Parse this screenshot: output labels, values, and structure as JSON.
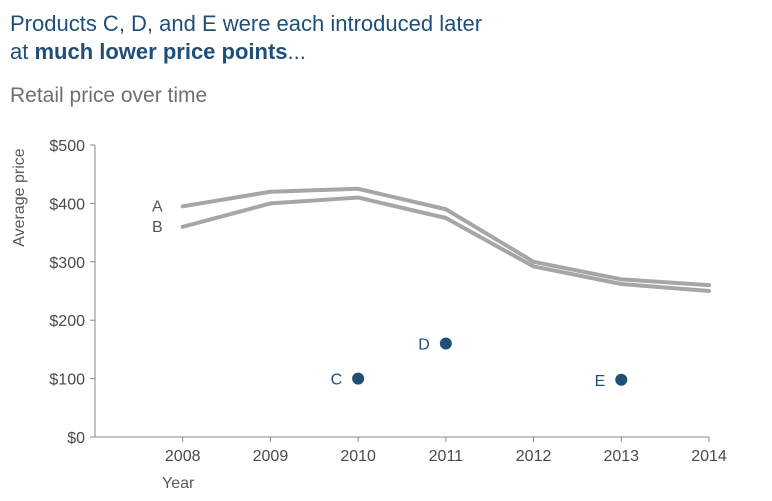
{
  "headline": {
    "line1": "Products C, D, and E were each introduced later",
    "line2_prefix": "at ",
    "line2_bold": "much lower price points",
    "line2_suffix": "..."
  },
  "chart_data": {
    "type": "line",
    "title": "Retail price over time",
    "xlabel": "Year",
    "ylabel": "Average price",
    "x_ticks": [
      2008,
      2009,
      2010,
      2011,
      2012,
      2013,
      2014
    ],
    "xlim": [
      2007,
      2014
    ],
    "ylim": [
      0,
      500
    ],
    "y_ticks": [
      0,
      100,
      200,
      300,
      400,
      500
    ],
    "y_tick_labels": [
      "$0",
      "$100",
      "$200",
      "$300",
      "$400",
      "$500"
    ],
    "grid": false,
    "legend": "none",
    "series": [
      {
        "name": "A",
        "kind": "line",
        "color": "#a6a6a6",
        "x": [
          2008,
          2009,
          2010,
          2011,
          2012,
          2013,
          2014
        ],
        "values": [
          395,
          420,
          425,
          390,
          300,
          270,
          260
        ]
      },
      {
        "name": "B",
        "kind": "line",
        "color": "#a6a6a6",
        "x": [
          2008,
          2009,
          2010,
          2011,
          2012,
          2013,
          2014
        ],
        "values": [
          360,
          400,
          410,
          375,
          292,
          262,
          250
        ]
      },
      {
        "name": "C",
        "kind": "point",
        "color": "#1f4e79",
        "x": [
          2010
        ],
        "values": [
          100
        ]
      },
      {
        "name": "D",
        "kind": "point",
        "color": "#1f4e79",
        "x": [
          2011
        ],
        "values": [
          160
        ]
      },
      {
        "name": "E",
        "kind": "point",
        "color": "#1f4e79",
        "x": [
          2013
        ],
        "values": [
          98
        ]
      }
    ]
  }
}
